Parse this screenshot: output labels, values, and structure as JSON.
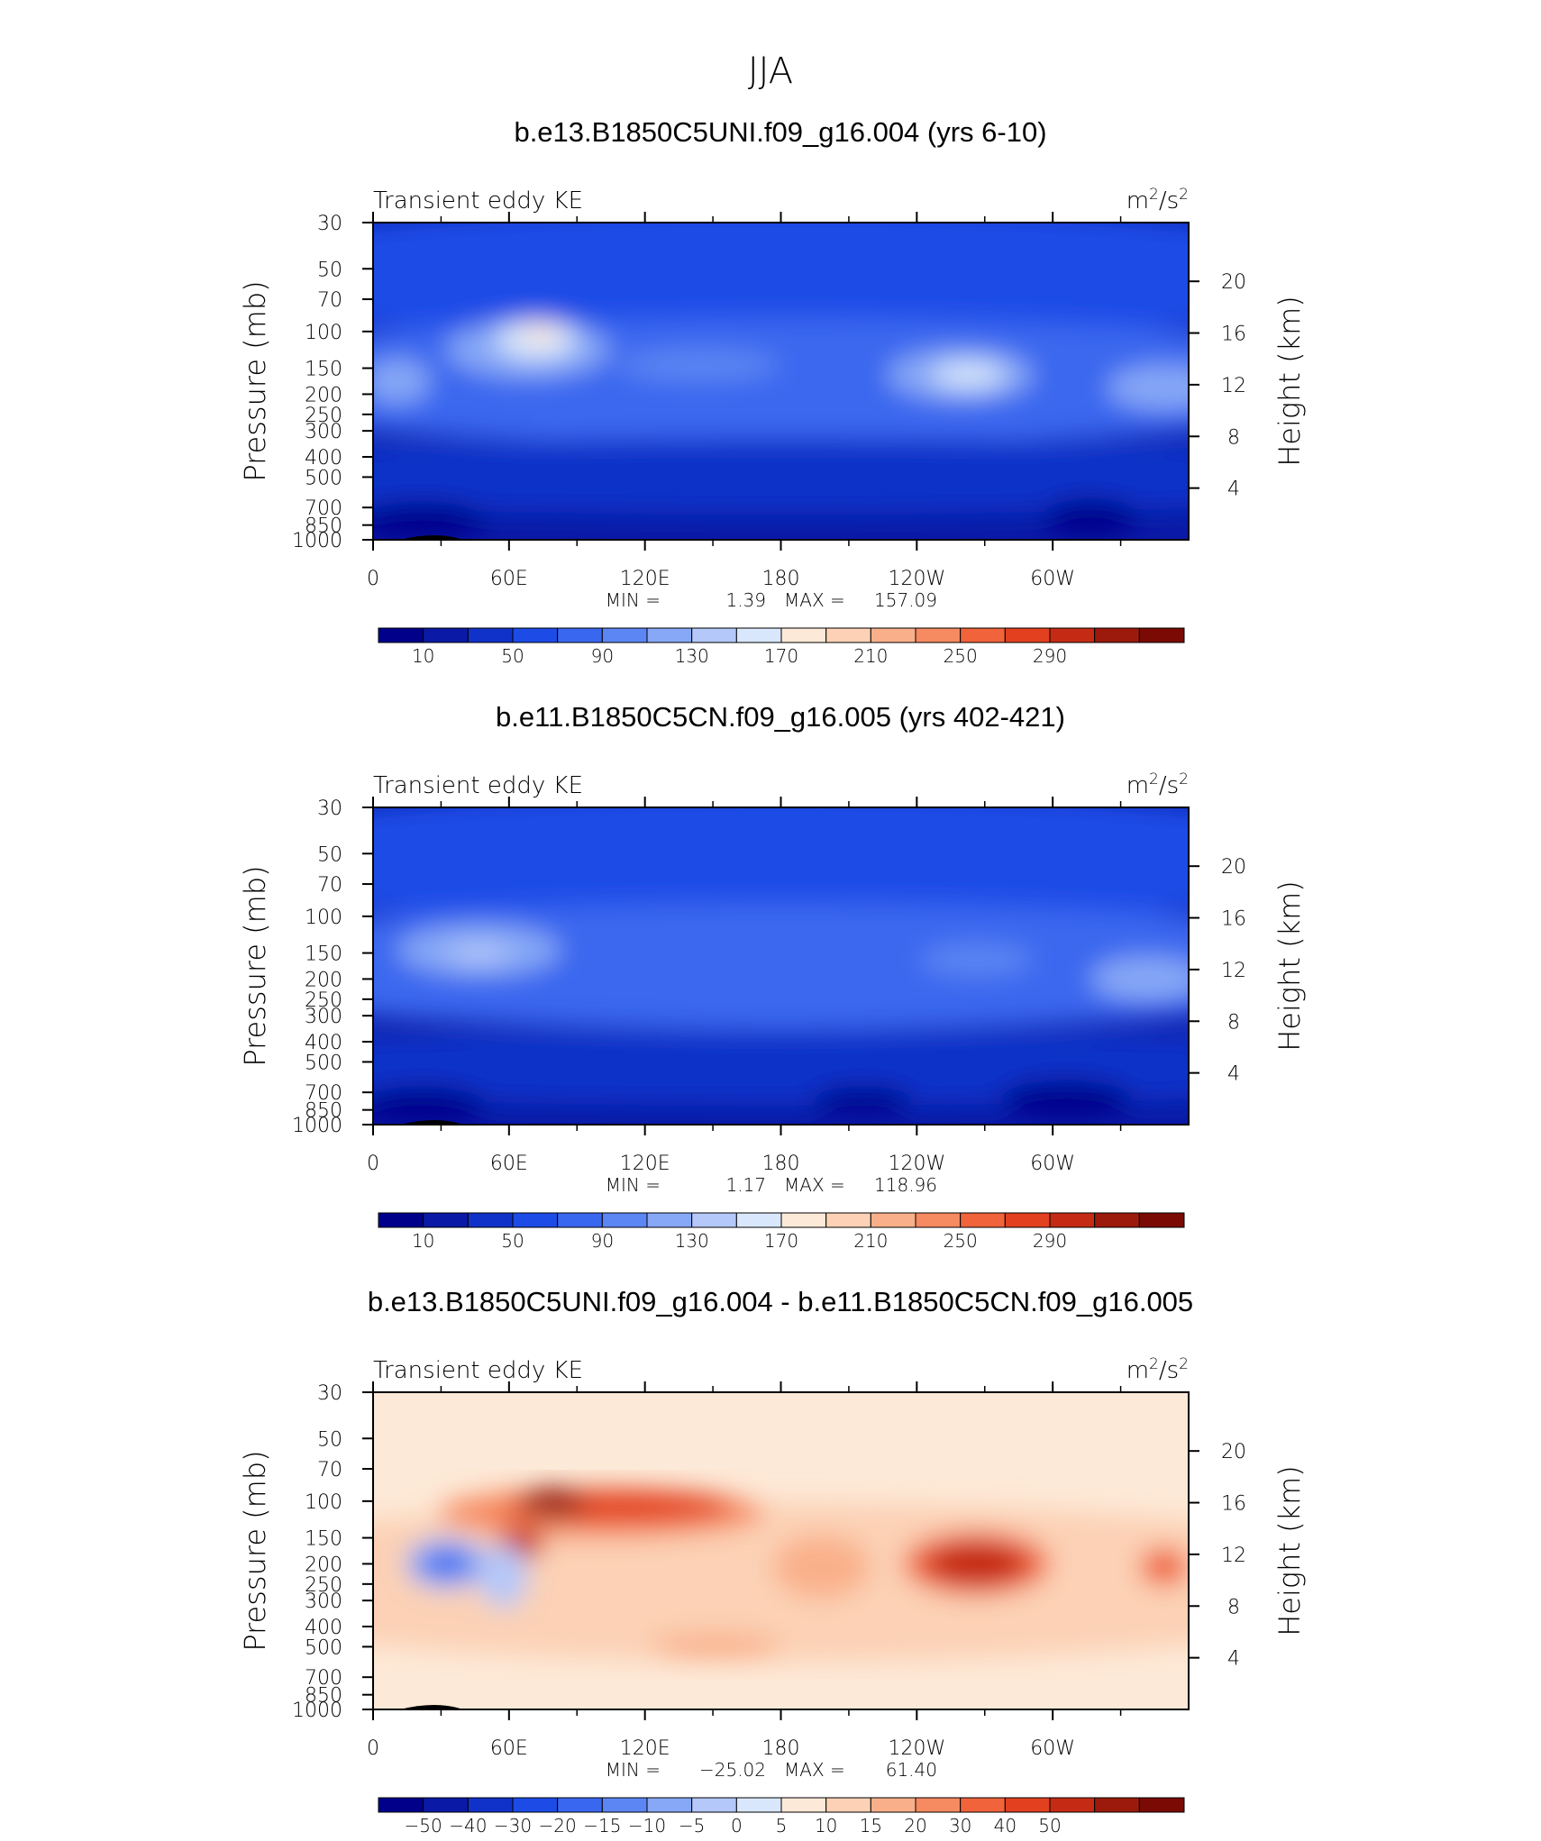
{
  "figure": {
    "main_title": "JJA"
  },
  "colors": {
    "abs_levels": [
      "#00008b",
      "#0a1aa6",
      "#1132c8",
      "#1c4be6",
      "#3a67ef",
      "#5b86f3",
      "#87a8f6",
      "#b4c8f9",
      "#d8e7fb",
      "#fde9d7",
      "#fcd1b5",
      "#f9b08a",
      "#f68a61",
      "#f0633b",
      "#e2401f",
      "#c52b14",
      "#9c1a0b",
      "#7a0a03"
    ],
    "diff_levels": [
      "#00008b",
      "#0a1aa6",
      "#1132c8",
      "#1c4be6",
      "#3a67ef",
      "#5b86f3",
      "#87a8f6",
      "#b4c8f9",
      "#d8e7fb",
      "#fde9d7",
      "#fcd1b5",
      "#f9b08a",
      "#f68a61",
      "#f0633b",
      "#e2401f",
      "#c52b14",
      "#9c1a0b",
      "#7a0a03"
    ]
  },
  "chart_data": [
    {
      "type": "heatmap",
      "title": "b.e13.B1850C5UNI.f09_g16.004 (yrs 6-10)",
      "left_label": "Transient eddy KE",
      "units": "m²/s²",
      "units_base": "m",
      "units_mid": "/s",
      "units_exp": "2",
      "ylabel": "Pressure (mb)",
      "y2label": "Height (km)",
      "x_ticks": [
        "0",
        "60E",
        "120E",
        "180",
        "120W",
        "60W"
      ],
      "y_ticks": [
        "30",
        "50",
        "70",
        "100",
        "150",
        "200",
        "250",
        "300",
        "400",
        "500",
        "700",
        "850",
        "1000"
      ],
      "y_tick_values": [
        30,
        50,
        70,
        100,
        150,
        200,
        250,
        300,
        400,
        500,
        700,
        850,
        1000
      ],
      "y2_ticks": [
        "20",
        "16",
        "12",
        "8",
        "4"
      ],
      "y2_tick_values": [
        20,
        16,
        12,
        8,
        4
      ],
      "xlim": [
        0,
        360
      ],
      "ylim": [
        1000,
        30
      ],
      "y_scale": "log",
      "min_label": "MIN =",
      "min_value": "1.39",
      "max_label": "MAX =",
      "max_value": "157.09",
      "colorbar_labels": [
        "10",
        "50",
        "90",
        "130",
        "170",
        "210",
        "250",
        "290"
      ],
      "colorbar_label_values": [
        10,
        50,
        90,
        130,
        170,
        210,
        250,
        290
      ],
      "levels": [
        10,
        20,
        30,
        40,
        50,
        60,
        70,
        80,
        90,
        100,
        110,
        120,
        130,
        140,
        150,
        160,
        170,
        180,
        190,
        200,
        210,
        220,
        230,
        240,
        250,
        260,
        270,
        280,
        290
      ]
    },
    {
      "type": "heatmap",
      "title": "b.e11.B1850C5CN.f09_g16.005 (yrs 402-421)",
      "left_label": "Transient eddy KE",
      "units": "m²/s²",
      "units_base": "m",
      "units_mid": "/s",
      "units_exp": "2",
      "ylabel": "Pressure (mb)",
      "y2label": "Height (km)",
      "x_ticks": [
        "0",
        "60E",
        "120E",
        "180",
        "120W",
        "60W"
      ],
      "y_ticks": [
        "30",
        "50",
        "70",
        "100",
        "150",
        "200",
        "250",
        "300",
        "400",
        "500",
        "700",
        "850",
        "1000"
      ],
      "y_tick_values": [
        30,
        50,
        70,
        100,
        150,
        200,
        250,
        300,
        400,
        500,
        700,
        850,
        1000
      ],
      "y2_ticks": [
        "20",
        "16",
        "12",
        "8",
        "4"
      ],
      "y2_tick_values": [
        20,
        16,
        12,
        8,
        4
      ],
      "xlim": [
        0,
        360
      ],
      "ylim": [
        1000,
        30
      ],
      "y_scale": "log",
      "min_label": "MIN =",
      "min_value": "1.17",
      "max_label": "MAX =",
      "max_value": "118.96",
      "colorbar_labels": [
        "10",
        "50",
        "90",
        "130",
        "170",
        "210",
        "250",
        "290"
      ],
      "colorbar_label_values": [
        10,
        50,
        90,
        130,
        170,
        210,
        250,
        290
      ]
    },
    {
      "type": "heatmap",
      "title": "b.e13.B1850C5UNI.f09_g16.004 - b.e11.B1850C5CN.f09_g16.005",
      "left_label": "Transient eddy KE",
      "units": "m²/s²",
      "units_base": "m",
      "units_mid": "/s",
      "units_exp": "2",
      "ylabel": "Pressure (mb)",
      "y2label": "Height (km)",
      "x_ticks": [
        "0",
        "60E",
        "120E",
        "180",
        "120W",
        "60W"
      ],
      "y_ticks": [
        "30",
        "50",
        "70",
        "100",
        "150",
        "200",
        "250",
        "300",
        "400",
        "500",
        "700",
        "850",
        "1000"
      ],
      "y_tick_values": [
        30,
        50,
        70,
        100,
        150,
        200,
        250,
        300,
        400,
        500,
        700,
        850,
        1000
      ],
      "y2_ticks": [
        "20",
        "16",
        "12",
        "8",
        "4"
      ],
      "y2_tick_values": [
        20,
        16,
        12,
        8,
        4
      ],
      "xlim": [
        0,
        360
      ],
      "ylim": [
        1000,
        30
      ],
      "y_scale": "log",
      "min_label": "MIN =",
      "min_value": "−25.02",
      "max_label": "MAX =",
      "max_value": "61.40",
      "colorbar_labels": [
        "−50",
        "−40",
        "−30",
        "−20",
        "−15",
        "−10",
        "−5",
        "0",
        "5",
        "10",
        "15",
        "20",
        "30",
        "40",
        "50"
      ],
      "colorbar_label_values": [
        -50,
        -40,
        -30,
        -20,
        -15,
        -10,
        -5,
        0,
        5,
        10,
        15,
        20,
        30,
        40,
        50
      ]
    }
  ]
}
